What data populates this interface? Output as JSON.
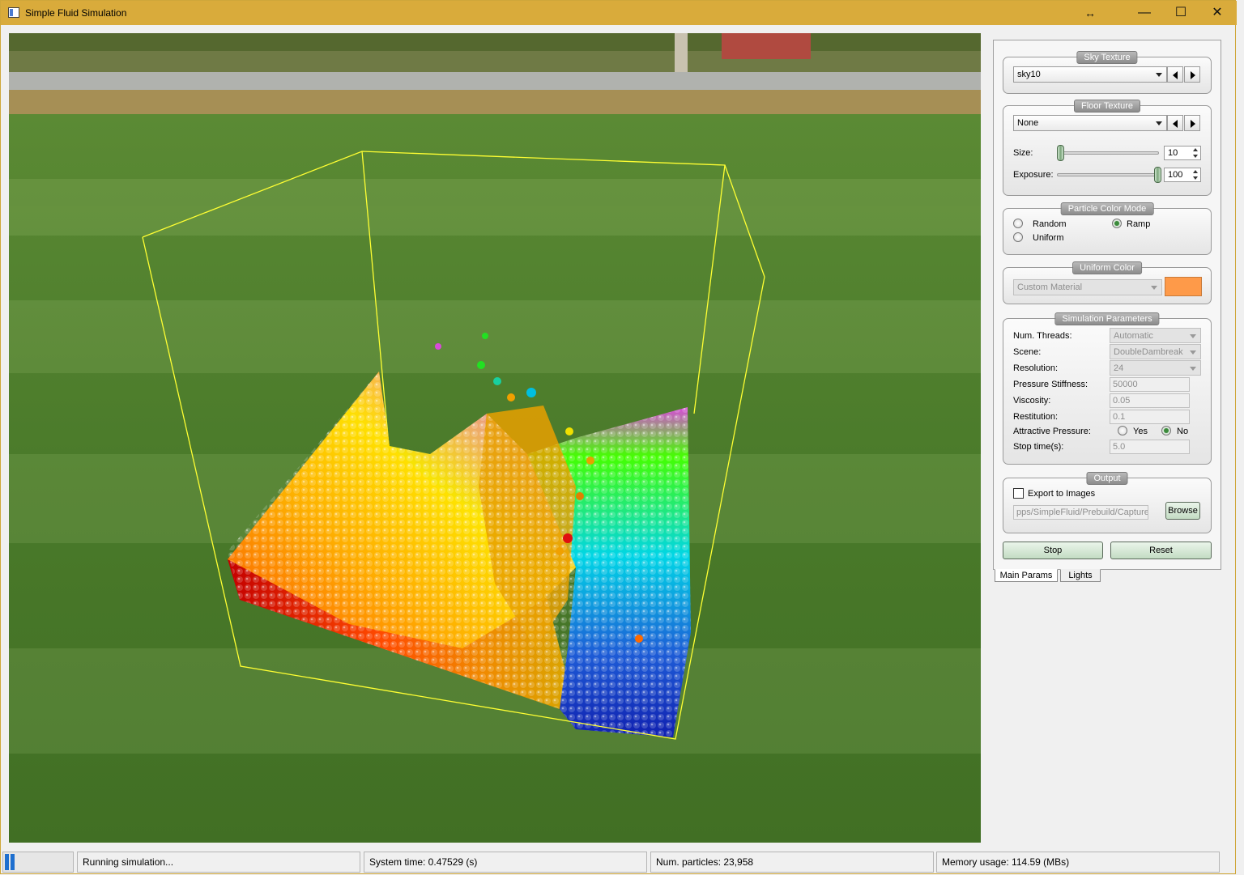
{
  "window": {
    "title": "Simple Fluid Simulation",
    "resize_glyph": "↔",
    "min_glyph": "—",
    "max_glyph": "☐",
    "close_glyph": "✕"
  },
  "viewport": {
    "scene": "fluid particles in a bounding box over a grass field",
    "colors": {
      "box_outline": "#ffff33",
      "grass": "#4e7a2e",
      "road": "#a9a9a9"
    }
  },
  "panel": {
    "sky_texture": {
      "title": "Sky Texture",
      "value": "sky10"
    },
    "floor_texture": {
      "title": "Floor Texture",
      "value": "None",
      "size_label": "Size:",
      "size_value": "10",
      "exposure_label": "Exposure:",
      "exposure_value": "100"
    },
    "particle_color_mode": {
      "title": "Particle Color Mode",
      "options": [
        "Random",
        "Ramp",
        "Uniform"
      ],
      "selected": "Ramp"
    },
    "uniform_color": {
      "title": "Uniform Color",
      "value": "Custom Material",
      "swatch": "#fe9a49"
    },
    "simulation_parameters": {
      "title": "Simulation Parameters",
      "rows": [
        {
          "label": "Num. Threads:",
          "value": "Automatic",
          "kind": "combo"
        },
        {
          "label": "Scene:",
          "value": "DoubleDambreak",
          "kind": "combo"
        },
        {
          "label": "Resolution:",
          "value": "24",
          "kind": "combo"
        },
        {
          "label": "Pressure Stiffness:",
          "value": "50000",
          "kind": "field"
        },
        {
          "label": "Viscosity:",
          "value": "0.05",
          "kind": "field"
        },
        {
          "label": "Restitution:",
          "value": "0.1",
          "kind": "field"
        }
      ],
      "attractive_pressure": {
        "label": "Attractive Pressure:",
        "yes": "Yes",
        "no": "No",
        "selected": "No"
      },
      "stop_time": {
        "label": "Stop time(s):",
        "value": "5.0"
      }
    },
    "output": {
      "title": "Output",
      "export_label": "Export to Images",
      "export_checked": false,
      "path_value": "pps/SimpleFluid/Prebuild/Capture/",
      "browse_label": "Browse"
    },
    "buttons": {
      "stop": "Stop",
      "reset": "Reset"
    },
    "tabs": [
      "Main Params",
      "Lights"
    ]
  },
  "status": {
    "progress": 0.15,
    "message": "Running simulation...",
    "system_time": "System time: 0.47529 (s)",
    "num_particles": "Num. particles: 23,958",
    "memory": "Memory usage: 114.59 (MBs)"
  }
}
